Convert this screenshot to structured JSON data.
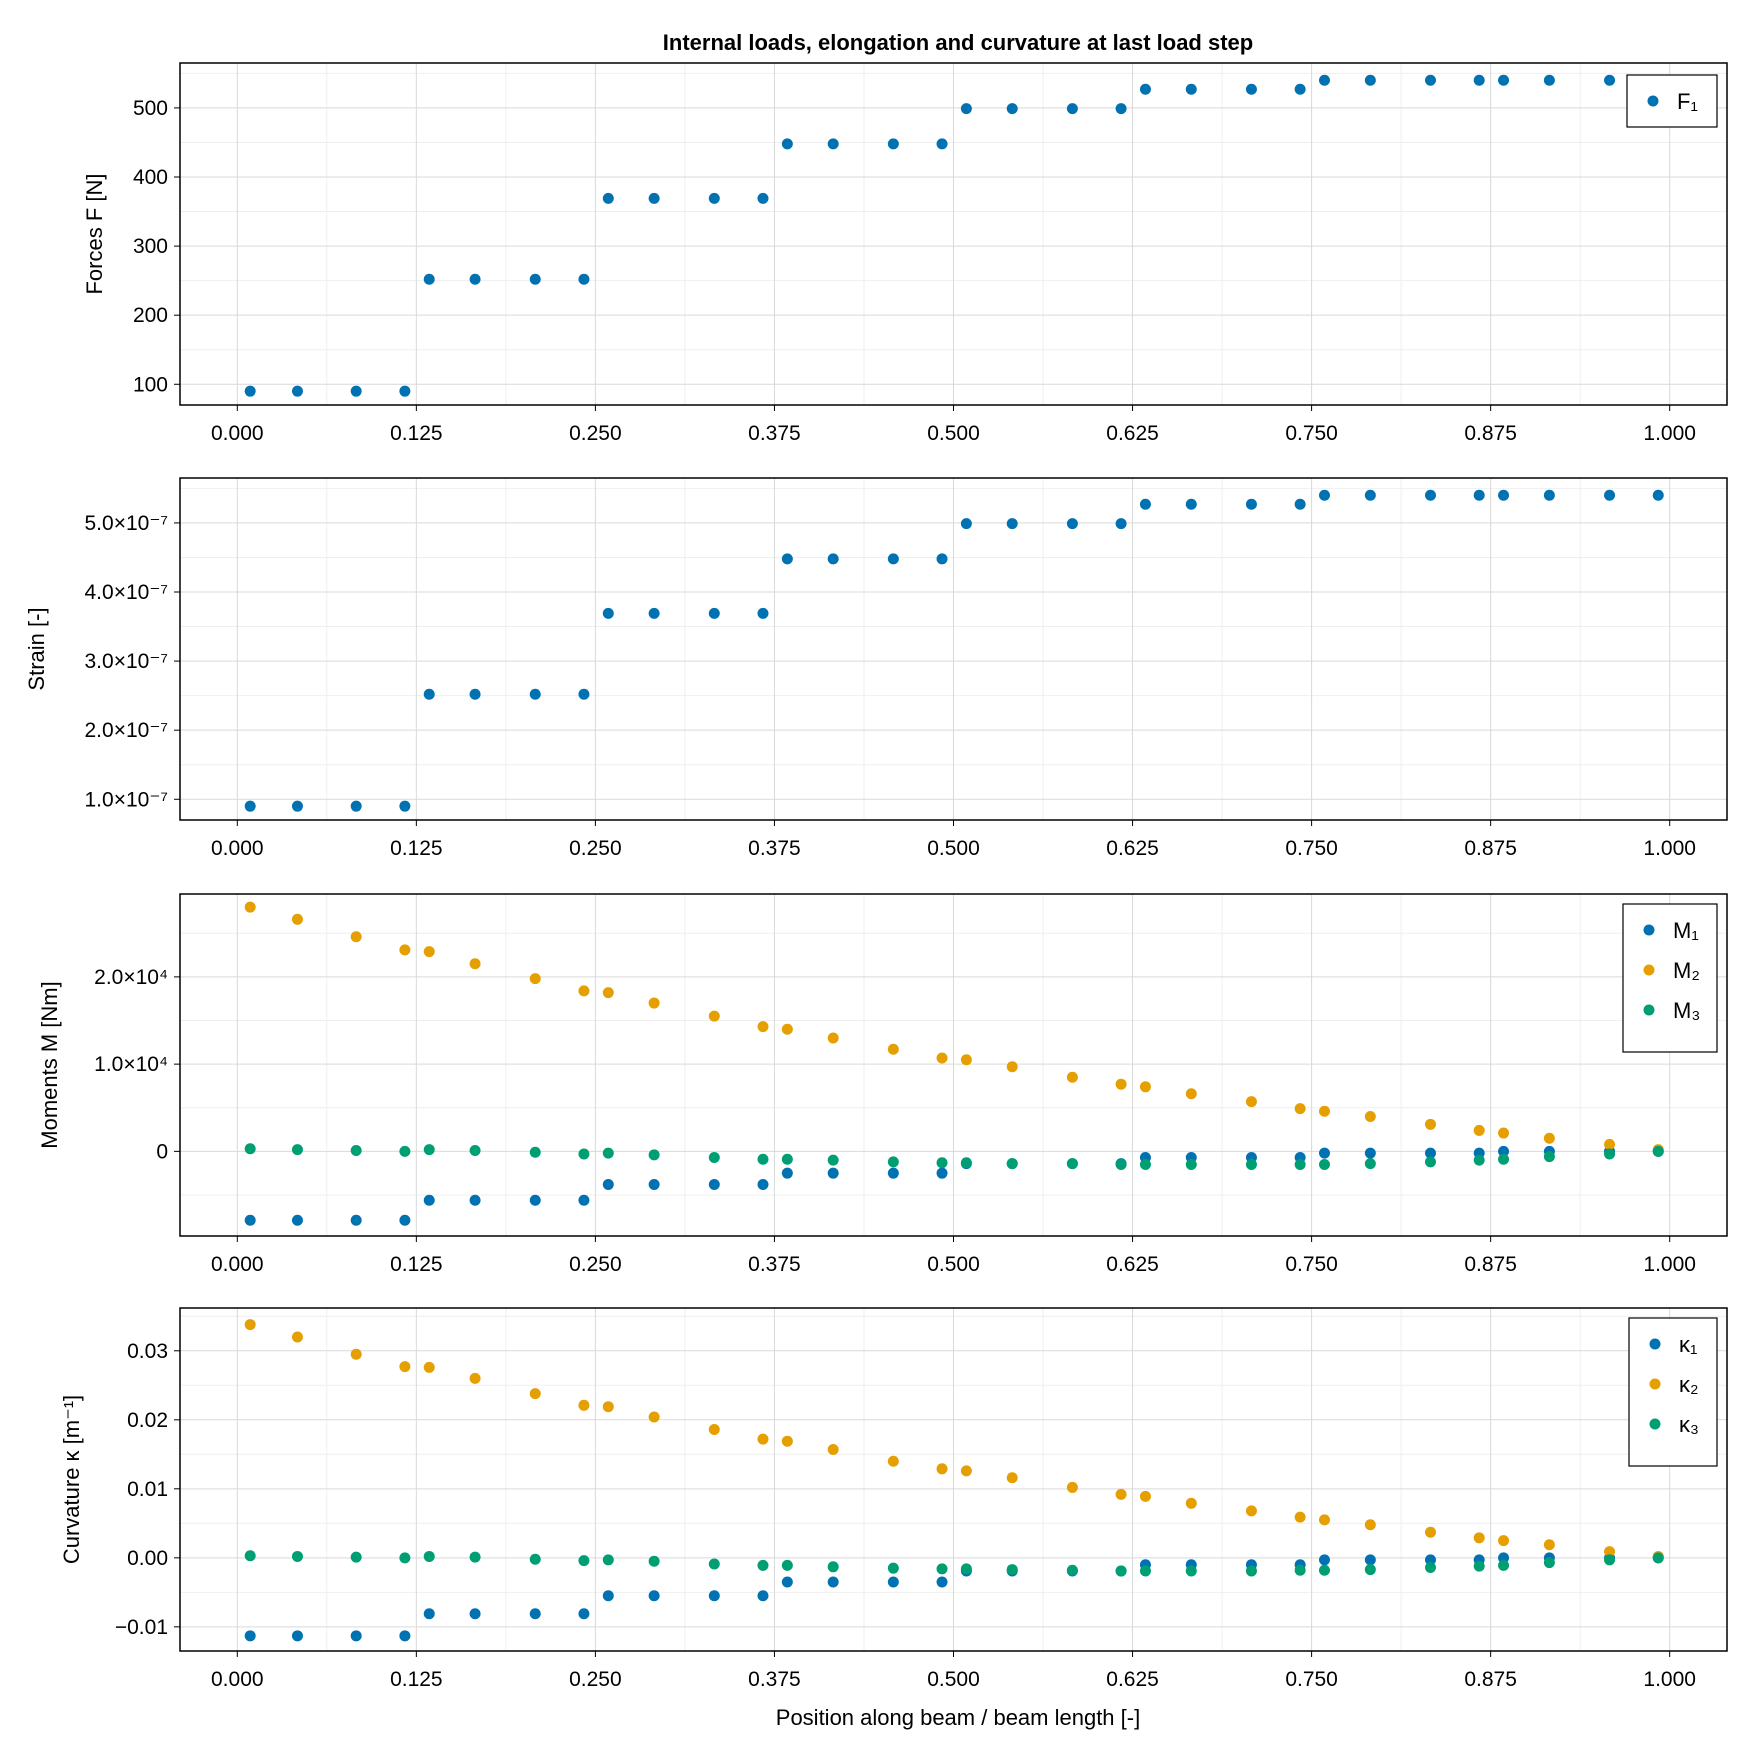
{
  "figure": {
    "title": "Internal loads, elongation and curvature at last load step",
    "xlabel": "Position along beam / beam length [-]",
    "colors": {
      "series1": "#0072b2",
      "series2": "#e69f00",
      "series3": "#009e73",
      "grid": "#d9d9d9",
      "minor_grid": "#efefef"
    }
  },
  "chart_data": [
    {
      "type": "scatter",
      "ylabel": "Forces F [N]",
      "xlim": [
        -0.04,
        1.04
      ],
      "ylim": [
        70,
        565
      ],
      "xticks": [
        0,
        0.125,
        0.25,
        0.375,
        0.5,
        0.625,
        0.75,
        0.875,
        1
      ],
      "xtick_labels": [
        "0.000",
        "0.125",
        "0.250",
        "0.375",
        "0.500",
        "0.625",
        "0.750",
        "0.875",
        "1.000"
      ],
      "yticks": [
        100,
        200,
        300,
        400,
        500
      ],
      "ytick_labels": [
        "100",
        "200",
        "300",
        "400",
        "500"
      ],
      "x": [
        0.009,
        0.042,
        0.083,
        0.117,
        0.134,
        0.166,
        0.208,
        0.242,
        0.259,
        0.291,
        0.333,
        0.367,
        0.384,
        0.416,
        0.458,
        0.492,
        0.509,
        0.541,
        0.583,
        0.617,
        0.634,
        0.666,
        0.708,
        0.742,
        0.759,
        0.791,
        0.833,
        0.867,
        0.884,
        0.916,
        0.958,
        0.992
      ],
      "series": [
        {
          "name": "F₁",
          "color": "#0072b2",
          "values": [
            90,
            90,
            90,
            90,
            252,
            252,
            252,
            252,
            369,
            369,
            369,
            369,
            448,
            448,
            448,
            448,
            499,
            499,
            499,
            499,
            527,
            527,
            527,
            527,
            540,
            540,
            540,
            540,
            540,
            540,
            540,
            540
          ]
        }
      ],
      "legend": "top-right",
      "grid": true
    },
    {
      "type": "scatter",
      "ylabel": "Strain [-]",
      "xlim": [
        -0.04,
        1.04
      ],
      "ylim": [
        0.7,
        5.65
      ],
      "xticks": [
        0,
        0.125,
        0.25,
        0.375,
        0.5,
        0.625,
        0.75,
        0.875,
        1
      ],
      "xtick_labels": [
        "0.000",
        "0.125",
        "0.250",
        "0.375",
        "0.500",
        "0.625",
        "0.750",
        "0.875",
        "1.000"
      ],
      "yticks": [
        1,
        2,
        3,
        4,
        5
      ],
      "ytick_labels": [
        "1.0×10⁻⁷",
        "2.0×10⁻⁷",
        "3.0×10⁻⁷",
        "4.0×10⁻⁷",
        "5.0×10⁻⁷"
      ],
      "x": [
        0.009,
        0.042,
        0.083,
        0.117,
        0.134,
        0.166,
        0.208,
        0.242,
        0.259,
        0.291,
        0.333,
        0.367,
        0.384,
        0.416,
        0.458,
        0.492,
        0.509,
        0.541,
        0.583,
        0.617,
        0.634,
        0.666,
        0.708,
        0.742,
        0.759,
        0.791,
        0.833,
        0.867,
        0.884,
        0.916,
        0.958,
        0.992
      ],
      "series": [
        {
          "color": "#0072b2",
          "values": [
            0.9,
            0.9,
            0.9,
            0.9,
            2.52,
            2.52,
            2.52,
            2.52,
            3.69,
            3.69,
            3.69,
            3.69,
            4.48,
            4.48,
            4.48,
            4.48,
            4.99,
            4.99,
            4.99,
            4.99,
            5.27,
            5.27,
            5.27,
            5.27,
            5.4,
            5.4,
            5.4,
            5.4,
            5.4,
            5.4,
            5.4,
            5.4
          ]
        }
      ],
      "grid": true
    },
    {
      "type": "scatter",
      "ylabel": "Moments M [Nm]",
      "xlim": [
        -0.04,
        1.04
      ],
      "ylim": [
        -9700,
        29500
      ],
      "xticks": [
        0,
        0.125,
        0.25,
        0.375,
        0.5,
        0.625,
        0.75,
        0.875,
        1
      ],
      "xtick_labels": [
        "0.000",
        "0.125",
        "0.250",
        "0.375",
        "0.500",
        "0.625",
        "0.750",
        "0.875",
        "1.000"
      ],
      "yticks": [
        0,
        10000,
        20000
      ],
      "ytick_labels": [
        "0",
        "1.0×10⁴",
        "2.0×10⁴"
      ],
      "x": [
        0.009,
        0.042,
        0.083,
        0.117,
        0.134,
        0.166,
        0.208,
        0.242,
        0.259,
        0.291,
        0.333,
        0.367,
        0.384,
        0.416,
        0.458,
        0.492,
        0.509,
        0.541,
        0.583,
        0.617,
        0.634,
        0.666,
        0.708,
        0.742,
        0.759,
        0.791,
        0.833,
        0.867,
        0.884,
        0.916,
        0.958,
        0.992
      ],
      "series": [
        {
          "name": "M₁",
          "color": "#0072b2",
          "values": [
            -7900,
            -7900,
            -7900,
            -7900,
            -5600,
            -5600,
            -5600,
            -5600,
            -3800,
            -3800,
            -3800,
            -3800,
            -2500,
            -2500,
            -2500,
            -2500,
            -1400,
            -1400,
            -1400,
            -1400,
            -700,
            -700,
            -700,
            -700,
            -200,
            -200,
            -200,
            -200,
            0,
            0,
            0,
            0
          ]
        },
        {
          "name": "M₂",
          "color": "#e69f00",
          "values": [
            28000,
            26600,
            24600,
            23100,
            22900,
            21500,
            19800,
            18400,
            18200,
            17000,
            15500,
            14300,
            14000,
            13000,
            11700,
            10700,
            10500,
            9700,
            8500,
            7700,
            7400,
            6600,
            5700,
            4900,
            4600,
            4000,
            3100,
            2400,
            2100,
            1500,
            800,
            200
          ]
        },
        {
          "name": "M₃",
          "color": "#009e73",
          "values": [
            300,
            200,
            100,
            0,
            200,
            100,
            -100,
            -300,
            -200,
            -400,
            -700,
            -900,
            -900,
            -1000,
            -1200,
            -1300,
            -1300,
            -1400,
            -1400,
            -1500,
            -1500,
            -1500,
            -1500,
            -1500,
            -1500,
            -1400,
            -1200,
            -1000,
            -900,
            -600,
            -300,
            0
          ]
        }
      ],
      "legend": "top-right",
      "grid": true
    },
    {
      "type": "scatter",
      "ylabel": "Curvature κ [m⁻¹]",
      "xlim": [
        -0.04,
        1.04
      ],
      "ylim": [
        -0.0135,
        0.0362
      ],
      "xticks": [
        0,
        0.125,
        0.25,
        0.375,
        0.5,
        0.625,
        0.75,
        0.875,
        1
      ],
      "xtick_labels": [
        "0.000",
        "0.125",
        "0.250",
        "0.375",
        "0.500",
        "0.625",
        "0.750",
        "0.875",
        "1.000"
      ],
      "yticks": [
        -0.01,
        0,
        0.01,
        0.02,
        0.03
      ],
      "ytick_labels": [
        "−0.01",
        "0.00",
        "0.01",
        "0.02",
        "0.03"
      ],
      "x": [
        0.009,
        0.042,
        0.083,
        0.117,
        0.134,
        0.166,
        0.208,
        0.242,
        0.259,
        0.291,
        0.333,
        0.367,
        0.384,
        0.416,
        0.458,
        0.492,
        0.509,
        0.541,
        0.583,
        0.617,
        0.634,
        0.666,
        0.708,
        0.742,
        0.759,
        0.791,
        0.833,
        0.867,
        0.884,
        0.916,
        0.958,
        0.992
      ],
      "series": [
        {
          "name": "κ₁",
          "color": "#0072b2",
          "values": [
            -0.0113,
            -0.0113,
            -0.0113,
            -0.0113,
            -0.0081,
            -0.0081,
            -0.0081,
            -0.0081,
            -0.0055,
            -0.0055,
            -0.0055,
            -0.0055,
            -0.0035,
            -0.0035,
            -0.0035,
            -0.0035,
            -0.0019,
            -0.0019,
            -0.0019,
            -0.0019,
            -0.001,
            -0.001,
            -0.001,
            -0.001,
            -0.0003,
            -0.0003,
            -0.0003,
            -0.0003,
            0.0,
            0.0,
            0.0,
            0.0
          ]
        },
        {
          "name": "κ₂",
          "color": "#e69f00",
          "values": [
            0.0338,
            0.032,
            0.0295,
            0.0277,
            0.0276,
            0.026,
            0.0238,
            0.0221,
            0.0219,
            0.0204,
            0.0186,
            0.0172,
            0.0169,
            0.0157,
            0.014,
            0.0129,
            0.0126,
            0.0116,
            0.0102,
            0.0092,
            0.0089,
            0.0079,
            0.0068,
            0.0059,
            0.0055,
            0.0048,
            0.0037,
            0.0029,
            0.0025,
            0.0019,
            0.0009,
            0.0002
          ]
        },
        {
          "name": "κ₃",
          "color": "#009e73",
          "values": [
            0.0003,
            0.0002,
            0.0001,
            0.0,
            0.0002,
            0.0001,
            -0.0002,
            -0.0004,
            -0.0003,
            -0.0005,
            -0.0009,
            -0.0011,
            -0.0011,
            -0.0013,
            -0.0015,
            -0.0016,
            -0.0016,
            -0.0017,
            -0.0018,
            -0.0019,
            -0.0019,
            -0.0019,
            -0.0019,
            -0.0018,
            -0.0018,
            -0.0017,
            -0.0014,
            -0.0012,
            -0.0011,
            -0.0007,
            -0.0003,
            0.0
          ]
        }
      ],
      "legend": "top-right",
      "grid": true
    }
  ]
}
